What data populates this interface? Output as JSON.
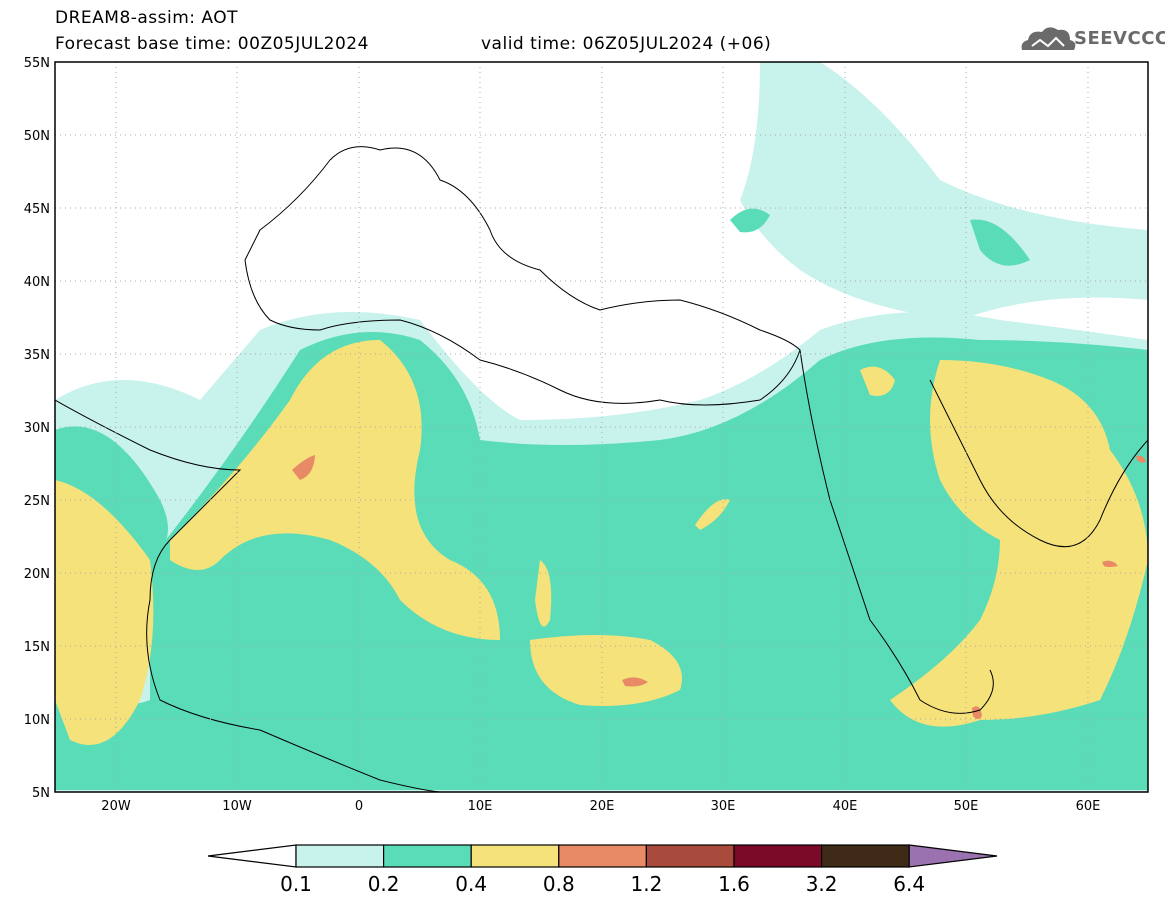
{
  "title": {
    "line1": "DREAM8-assim: AOT",
    "line2": "Forecast base time: 00Z05JUL2024",
    "valid": "valid time: 06Z05JUL2024 (+06)"
  },
  "logo": {
    "text": "SEEVCCC",
    "icon": "cloud-icon"
  },
  "map": {
    "variable": "AOT",
    "lat_range": [
      5,
      55
    ],
    "lon_range": [
      -25,
      65
    ],
    "grid": "dotted",
    "lat_labels": [
      "55N",
      "50N",
      "45N",
      "40N",
      "35N",
      "30N",
      "25N",
      "20N",
      "15N",
      "10N",
      "5N"
    ],
    "lon_labels": [
      "20W",
      "10W",
      "0",
      "10E",
      "20E",
      "30E",
      "40E",
      "50E",
      "60E"
    ]
  },
  "colorbar": {
    "labels": [
      "0.1",
      "0.2",
      "0.4",
      "0.8",
      "1.2",
      "1.6",
      "3.2",
      "6.4"
    ],
    "colors": [
      "#c8f2ec",
      "#5adcb8",
      "#f5e27a",
      "#e88a66",
      "#a84a3c",
      "#7a0a28",
      "#3e2a16"
    ],
    "below_color": "#ffffff",
    "above_color": "#9a72b0"
  }
}
